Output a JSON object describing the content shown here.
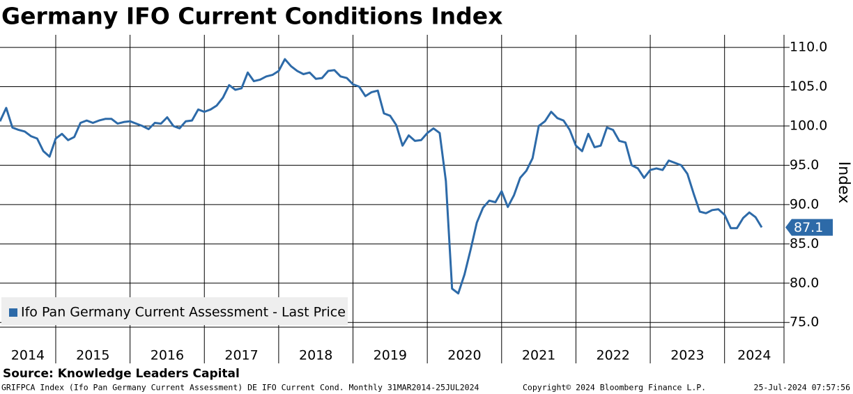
{
  "chart_data": {
    "type": "line",
    "title": "Germany IFO Current Conditions Index",
    "y_label": "Index",
    "source": "Source: Knowledge Leaders Capital",
    "footer_left": "GRIFPCA Index (Ifo Pan Germany Current Assessment) DE IFO Current Cond.  Monthly 31MAR2014-25JUL2024",
    "footer_center": "Copyright© 2024 Bloomberg Finance L.P.",
    "footer_right": "25-Jul-2024 07:57:56",
    "xlim": [
      2014.25,
      2024.8
    ],
    "xticks": [
      2014,
      2015,
      2016,
      2017,
      2018,
      2019,
      2020,
      2021,
      2022,
      2023,
      2024
    ],
    "ylim": [
      74.4,
      111.6
    ],
    "yticks": [
      {
        "value": 75,
        "label": "75.0"
      },
      {
        "value": 80,
        "label": "80.0"
      },
      {
        "value": 85,
        "label": "85.0"
      },
      {
        "value": 90,
        "label": "90.0"
      },
      {
        "value": 95,
        "label": "95.0"
      },
      {
        "value": 100,
        "label": "100.0"
      },
      {
        "value": 105,
        "label": "105.0"
      },
      {
        "value": 110,
        "label": "110.0"
      }
    ],
    "grid": true,
    "legend_position": "lower left",
    "series": [
      {
        "name": "Ifo Pan Germany Current Assessment - Last Price",
        "color": "#2d6aa8",
        "values": [
          100.6,
          102.3,
          99.8,
          99.5,
          99.3,
          98.7,
          98.4,
          96.8,
          96.1,
          98.4,
          99.0,
          98.2,
          98.6,
          100.4,
          100.7,
          100.4,
          100.7,
          100.9,
          100.9,
          100.3,
          100.5,
          100.6,
          100.3,
          100.0,
          99.6,
          100.4,
          100.3,
          101.1,
          100.0,
          99.7,
          100.6,
          100.7,
          102.1,
          101.8,
          102.1,
          102.6,
          103.6,
          105.2,
          104.6,
          104.8,
          106.8,
          105.7,
          105.9,
          106.3,
          106.5,
          107.0,
          108.5,
          107.6,
          107.0,
          106.6,
          106.8,
          106.0,
          106.1,
          107.0,
          107.1,
          106.3,
          106.1,
          105.3,
          105.0,
          103.8,
          104.3,
          104.5,
          101.6,
          101.3,
          100.1,
          97.5,
          98.8,
          98.1,
          98.2,
          99.1,
          99.7,
          99.1,
          93.0,
          79.3,
          78.7,
          81.1,
          84.3,
          87.7,
          89.6,
          90.5,
          90.3,
          91.7,
          89.7,
          91.2,
          93.4,
          94.3,
          95.9,
          100.0,
          100.6,
          101.8,
          101.0,
          100.7,
          99.5,
          97.5,
          96.8,
          99.0,
          97.3,
          97.5,
          99.8,
          99.5,
          98.1,
          97.9,
          95.0,
          94.6,
          93.4,
          94.4,
          94.6,
          94.4,
          95.6,
          95.3,
          95.0,
          93.9,
          91.4,
          89.1,
          88.9,
          89.3,
          89.4,
          88.7,
          87.0,
          87.0,
          88.3,
          89.0,
          88.4,
          87.1
        ]
      }
    ]
  }
}
